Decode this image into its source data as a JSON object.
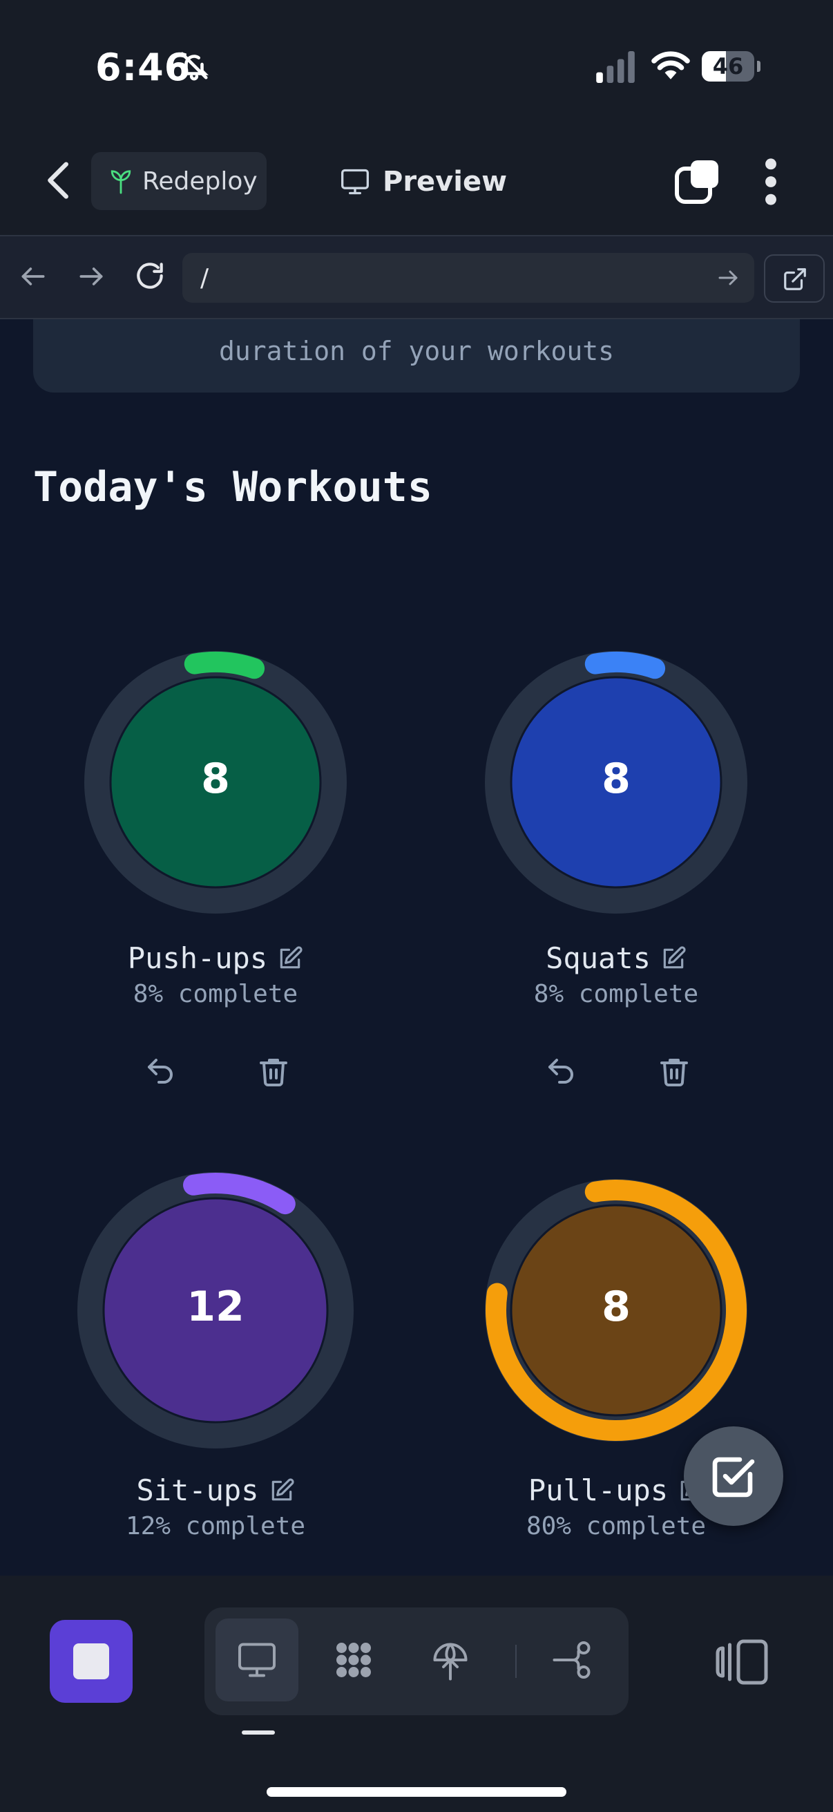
{
  "status_bar": {
    "time": "6:46",
    "battery": "46",
    "battery_level": 0.46
  },
  "header": {
    "redeploy_label": "Redeploy",
    "preview_label": "Preview"
  },
  "url_bar": {
    "url": "/"
  },
  "info_card": {
    "text": "duration of your workouts"
  },
  "section": {
    "title": "Today's Workouts"
  },
  "workouts": [
    {
      "name": "Push-ups",
      "count": "8",
      "status": "8% complete",
      "progress": 0.08,
      "accent": "#22c55e",
      "inner": "#065f46"
    },
    {
      "name": "Squats",
      "count": "8",
      "status": "8% complete",
      "progress": 0.08,
      "accent": "#3b82f6",
      "inner": "#1e40af"
    },
    {
      "name": "Sit-ups",
      "count": "12",
      "status": "12% complete",
      "progress": 0.12,
      "accent": "#8b5cf6",
      "inner": "#4c2f8f"
    },
    {
      "name": "Pull-ups",
      "count": "8",
      "status": "80% complete",
      "progress": 0.8,
      "accent": "#f59e0b",
      "inner": "#6b4416"
    }
  ],
  "colors": {
    "background": "#0f172a",
    "card": "#1e293b",
    "stop_button": "#5b3fd6"
  },
  "icons": {
    "header": [
      "chevron-left-icon",
      "sprout-icon",
      "monitor-icon",
      "tabs-icon",
      "more-vertical-icon"
    ],
    "url_bar": [
      "arrow-left-icon",
      "arrow-right-icon",
      "reload-icon",
      "arrow-right-icon",
      "external-link-icon"
    ],
    "workout": [
      "edit-icon",
      "undo-icon",
      "trash-icon"
    ],
    "fab": "check-square-icon",
    "toolbar": [
      "stop-square-icon",
      "monitor-icon",
      "dots-grid-icon",
      "deploy-globe-icon",
      "share-nodes-icon",
      "sidebar-panel-icon"
    ]
  }
}
